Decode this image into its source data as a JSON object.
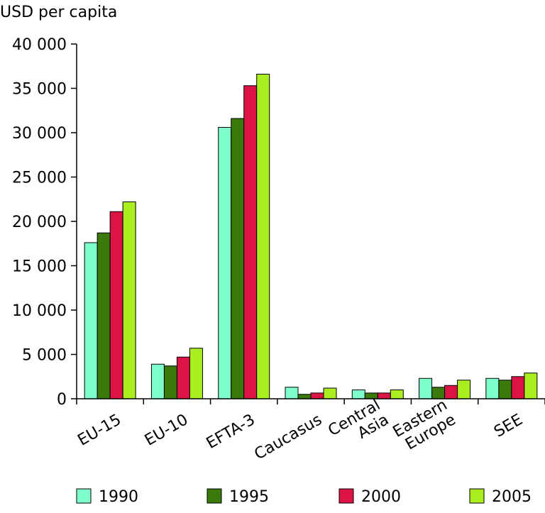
{
  "chart_data": {
    "type": "bar",
    "ylabel": "USD per capita",
    "ylim": [
      0,
      40000
    ],
    "yticks": [
      0,
      5000,
      10000,
      15000,
      20000,
      25000,
      30000,
      35000,
      40000
    ],
    "ytick_labels": [
      "0",
      "5 000",
      "10 000",
      "15 000",
      "20 000",
      "25 000",
      "30 000",
      "35 000",
      "40 000"
    ],
    "grid": false,
    "legend_position": "bottom",
    "categories": [
      [
        "EU-15"
      ],
      [
        "EU-10"
      ],
      [
        "EFTA-3"
      ],
      [
        "Caucasus"
      ],
      [
        "Central",
        "Asia"
      ],
      [
        "Eastern",
        "Europe"
      ],
      [
        "SEE"
      ]
    ],
    "series": [
      {
        "name": "1990",
        "color": "#7fffcc",
        "values": [
          17600,
          3900,
          30600,
          1300,
          1000,
          2300,
          2300
        ]
      },
      {
        "name": "1995",
        "color": "#3a7a0c",
        "values": [
          18700,
          3700,
          31600,
          500,
          650,
          1300,
          2100
        ]
      },
      {
        "name": "2000",
        "color": "#dc1446",
        "values": [
          21100,
          4700,
          35300,
          650,
          650,
          1500,
          2500
        ]
      },
      {
        "name": "2005",
        "color": "#aaee22",
        "values": [
          22200,
          5700,
          36600,
          1200,
          1000,
          2100,
          2900
        ]
      }
    ]
  }
}
